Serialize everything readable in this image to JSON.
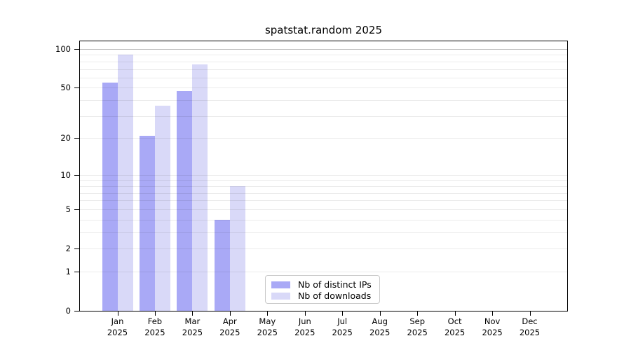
{
  "chart_data": {
    "type": "bar",
    "title": "spatstat.random 2025",
    "x_axis": {
      "months": [
        "Jan",
        "Feb",
        "Mar",
        "Apr",
        "May",
        "Jun",
        "Jul",
        "Aug",
        "Sep",
        "Oct",
        "Nov",
        "Dec"
      ],
      "year": "2025"
    },
    "y_axis": {
      "scale": "log1p",
      "ticks": [
        0,
        1,
        2,
        5,
        10,
        20,
        50,
        100
      ],
      "gridlines": [
        1,
        2,
        3,
        4,
        5,
        6,
        7,
        8,
        9,
        10,
        20,
        30,
        40,
        50,
        60,
        70,
        80,
        90,
        100
      ],
      "range": [
        0,
        100
      ]
    },
    "series": [
      {
        "name": "Nb of distinct IPs",
        "color": "#a9a9f6",
        "values": [
          55,
          21,
          47,
          4,
          null,
          null,
          null,
          null,
          null,
          null,
          null,
          null
        ]
      },
      {
        "name": "Nb of downloads",
        "color": "#d9d9f8",
        "values": [
          91,
          36,
          76,
          8,
          null,
          null,
          null,
          null,
          null,
          null,
          null,
          null
        ]
      }
    ],
    "legend_position": "bottom-center",
    "grid": "horizontal"
  },
  "colors": {
    "background": "#ffffff",
    "axis": "#000000",
    "grid": "#ebebeb",
    "grid_top": "#bcbcbc",
    "legend_border": "#c9c9c9",
    "bar_distinct_ips": "#a9a9f6",
    "bar_downloads": "#d9d9f8"
  }
}
